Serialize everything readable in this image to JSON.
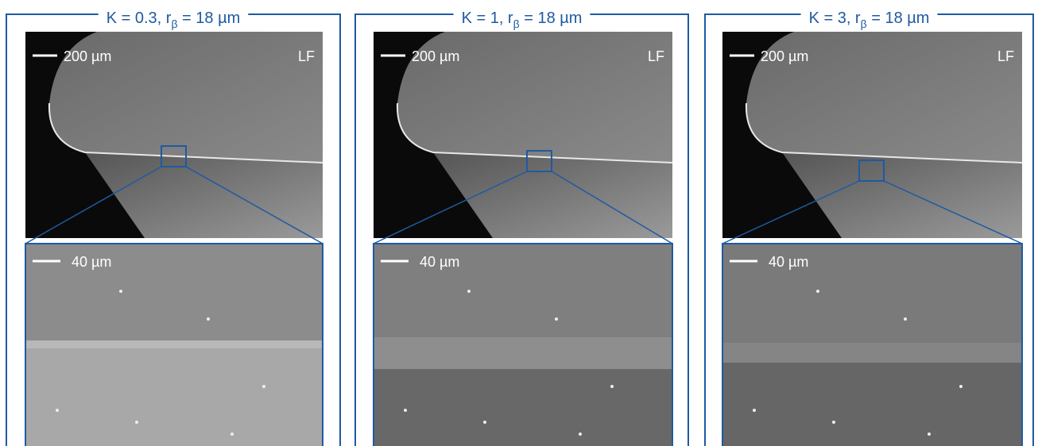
{
  "panels": [
    {
      "title": {
        "pre": "K = 0.3, r",
        "sub": "β",
        "post": " = 18 µm"
      },
      "overview": {
        "scale": "200 µm",
        "label": "LF"
      },
      "detail": {
        "scale": "40 µm"
      }
    },
    {
      "title": {
        "pre": "K = 1, r",
        "sub": "β",
        "post": " = 18 µm"
      },
      "overview": {
        "scale": "200 µm",
        "label": "LF"
      },
      "detail": {
        "scale": "40 µm"
      }
    },
    {
      "title": {
        "pre": "K = 3, r",
        "sub": "β",
        "post": " = 18 µm"
      },
      "overview": {
        "scale": "200 µm",
        "label": "LF"
      },
      "detail": {
        "scale": "40 µm"
      }
    }
  ]
}
